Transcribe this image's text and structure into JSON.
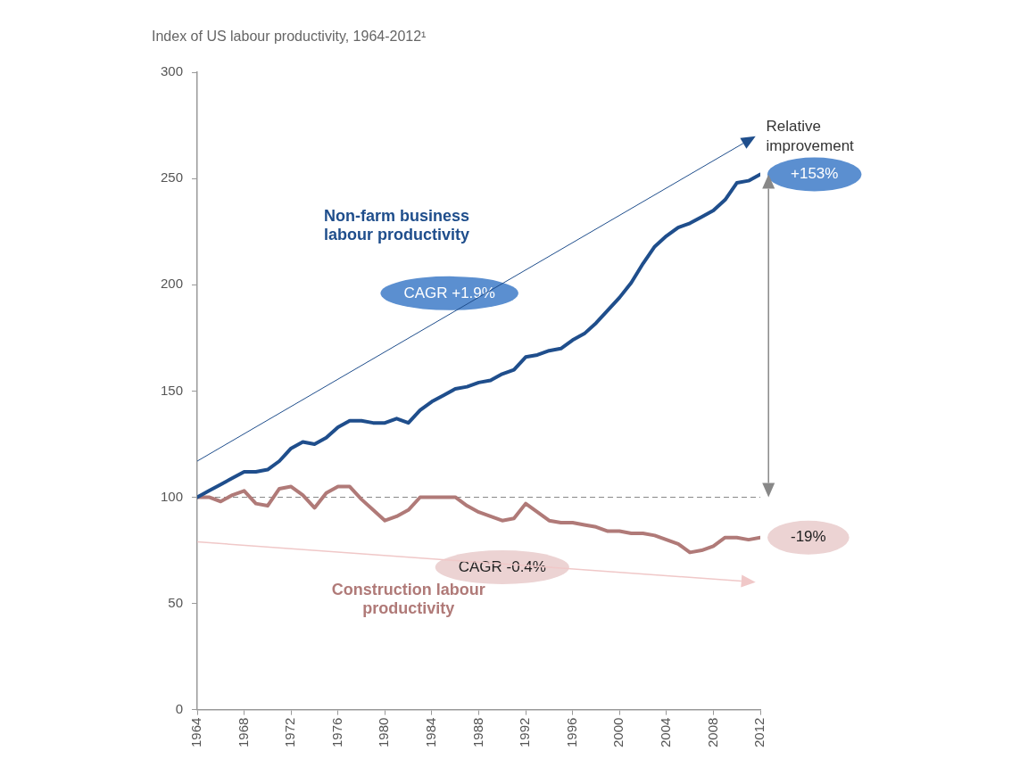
{
  "chart_data": {
    "type": "line",
    "title": "Index of US labour productivity, 1964-2012¹",
    "x": [
      1964,
      1965,
      1966,
      1967,
      1968,
      1969,
      1970,
      1971,
      1972,
      1973,
      1974,
      1975,
      1976,
      1977,
      1978,
      1979,
      1980,
      1981,
      1982,
      1983,
      1984,
      1985,
      1986,
      1987,
      1988,
      1989,
      1990,
      1991,
      1992,
      1993,
      1994,
      1995,
      1996,
      1997,
      1998,
      1999,
      2000,
      2001,
      2002,
      2003,
      2004,
      2005,
      2006,
      2007,
      2008,
      2009,
      2010,
      2011,
      2012
    ],
    "series": [
      {
        "name": "Non-farm business labour productivity",
        "color": "#1f4e8c",
        "values": [
          100,
          103,
          106,
          109,
          112,
          112,
          113,
          117,
          123,
          126,
          125,
          128,
          133,
          136,
          136,
          135,
          135,
          137,
          135,
          141,
          145,
          148,
          151,
          152,
          154,
          155,
          158,
          160,
          166,
          167,
          169,
          170,
          174,
          177,
          182,
          188,
          194,
          201,
          210,
          218,
          223,
          227,
          229,
          232,
          235,
          240,
          248,
          249,
          252
        ]
      },
      {
        "name": "Construction labour productivity",
        "color": "#b07a78",
        "values": [
          100,
          100,
          98,
          101,
          103,
          97,
          96,
          104,
          105,
          101,
          95,
          102,
          105,
          105,
          99,
          94,
          89,
          91,
          94,
          100,
          100,
          100,
          100,
          96,
          93,
          91,
          89,
          90,
          97,
          93,
          89,
          88,
          88,
          87,
          86,
          84,
          84,
          83,
          83,
          82,
          80,
          78,
          74,
          75,
          77,
          81,
          81,
          80,
          81
        ]
      }
    ],
    "xlim": [
      1964,
      2012
    ],
    "xticks": [
      1964,
      1968,
      1972,
      1976,
      1980,
      1984,
      1988,
      1992,
      1996,
      2000,
      2004,
      2008,
      2012
    ],
    "ylim": [
      0,
      300
    ],
    "yticks": [
      0,
      50,
      100,
      150,
      200,
      250,
      300
    ],
    "grid": false,
    "legend": false,
    "marker": "none",
    "line_style": "solid",
    "ref_lines": [
      {
        "axis": "y",
        "value": 100,
        "color": "#888888",
        "line_style": "dashed"
      }
    ],
    "annotations": [
      "CAGR +1.9%",
      "CAGR -0.4%",
      {
        "text": "+153%",
        "x": 2012,
        "y": 252
      },
      {
        "text": "-19%",
        "x": 2012,
        "y": 81
      },
      "Relative improvement"
    ]
  }
}
